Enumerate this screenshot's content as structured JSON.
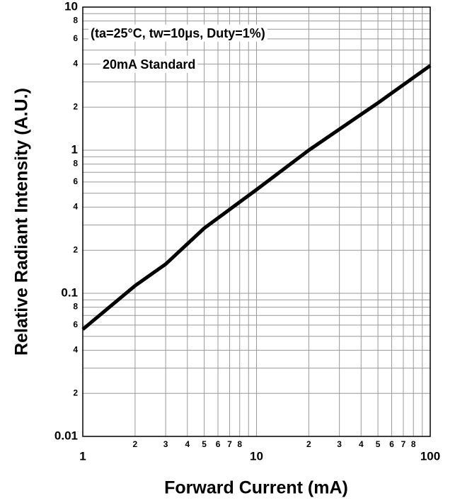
{
  "chart_data": {
    "type": "line",
    "x_label": "Forward Current (mA)",
    "y_label": "Relative Radiant Intensity (A.U.)",
    "annotations": [
      "(ta=25°C, tw=10μs, Duty=1%)",
      "20mA Standard"
    ],
    "x": [
      1,
      2,
      3,
      5,
      10,
      20,
      50,
      100
    ],
    "values": [
      0.056,
      0.113,
      0.16,
      0.285,
      0.53,
      1.0,
      2.14,
      3.9
    ],
    "color": "#000000",
    "xlog": true,
    "ylog": true,
    "grid": true,
    "xlim": [
      1,
      100
    ],
    "ylim": [
      0.01,
      10
    ],
    "xticks": [
      1,
      2,
      3,
      4,
      5,
      6,
      7,
      8,
      10,
      {
        "value": 20,
        "label": "2"
      },
      {
        "value": 30,
        "label": "3"
      },
      {
        "value": 40,
        "label": "4"
      },
      {
        "value": 50,
        "label": "5"
      },
      {
        "value": 60,
        "label": "6"
      },
      {
        "value": 70,
        "label": "7"
      },
      {
        "value": 80,
        "label": "8"
      },
      100
    ],
    "xminor": [
      9,
      90
    ],
    "yticks": [
      0.01,
      {
        "value": 0.02,
        "label": "2"
      },
      {
        "value": 0.04,
        "label": "4"
      },
      {
        "value": 0.06,
        "label": "6"
      },
      {
        "value": 0.08,
        "label": "8"
      },
      0.1,
      {
        "value": 0.2,
        "label": "2"
      },
      {
        "value": 0.4,
        "label": "4"
      },
      {
        "value": 0.6,
        "label": "6"
      },
      {
        "value": 0.8,
        "label": "8"
      },
      1,
      2,
      4,
      6,
      8,
      10
    ],
    "yminor": [
      0.03,
      0.05,
      0.07,
      0.09,
      0.3,
      0.5,
      0.7,
      0.9,
      3,
      5,
      7,
      9
    ]
  }
}
